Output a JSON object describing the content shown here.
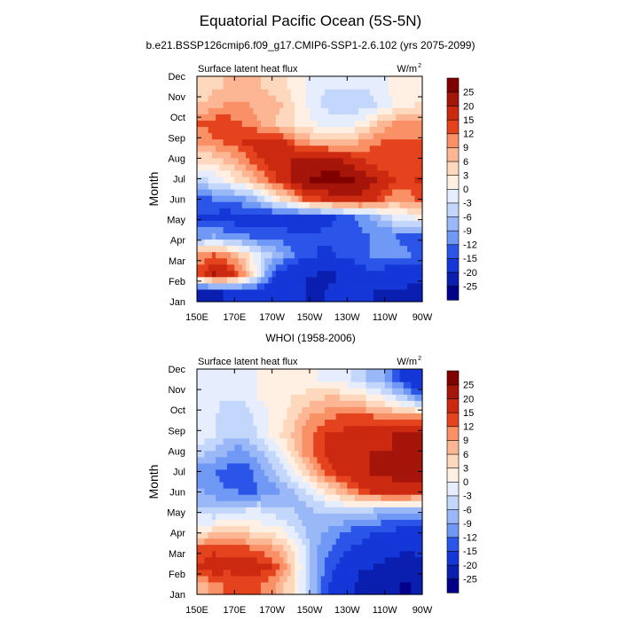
{
  "title": "Equatorial Pacific Ocean (5S-5N)",
  "colors": {
    "palette": [
      "#00008b",
      "#0a1fb0",
      "#1537d8",
      "#2a55e8",
      "#4a78ef",
      "#6f99f4",
      "#9ab8f7",
      "#c3d6fb",
      "#e6eefd",
      "#fff0e3",
      "#fdd8bd",
      "#fcb694",
      "#f99066",
      "#f0683c",
      "#e4431e",
      "#cc2a10",
      "#a5150a",
      "#800000"
    ]
  },
  "chart_data": [
    {
      "type": "heatmap",
      "title": "b.e21.BSSP126cmip6.f09_g17.CMIP6-SSP1-2.6.102 (yrs 2075-2099)",
      "left_string": "Surface latent heat flux",
      "right_string": "W/m",
      "right_string_sup": "2",
      "ylabel": "Month",
      "xlabel": "",
      "x_ticks": [
        "150E",
        "170E",
        "170W",
        "150W",
        "130W",
        "110W",
        "90W"
      ],
      "y_ticks": [
        "Jan",
        "Feb",
        "Mar",
        "Apr",
        "May",
        "Jun",
        "Jul",
        "Aug",
        "Sep",
        "Oct",
        "Nov",
        "Dec"
      ],
      "xlim": [
        150,
        270
      ],
      "colorbar_levels": [
        "25",
        "20",
        "15",
        "12",
        "9",
        "6",
        "3",
        "0",
        "-3",
        "-6",
        "-9",
        "-12",
        "-15",
        "-20",
        "-25"
      ],
      "grid": [
        [
          -22,
          -21,
          -20,
          -19,
          -18,
          -18,
          -18,
          -19,
          -20,
          -20,
          -21,
          -20,
          -19,
          -18,
          -19,
          -20,
          -21,
          -21,
          -21,
          -21
        ],
        [
          14,
          20,
          19,
          14,
          7,
          -3,
          -12,
          -17,
          -18,
          -20,
          -20,
          -21,
          -20,
          -18,
          -17,
          -16,
          -17,
          -18,
          -18,
          -19
        ],
        [
          10,
          12,
          10,
          7,
          3,
          -2,
          -6,
          -9,
          -12,
          -14,
          -15,
          -16,
          -15,
          -15,
          -13,
          -12,
          -11,
          -11,
          -11,
          -13
        ],
        [
          -10,
          -9,
          -10,
          -11,
          -12,
          -13,
          -13,
          -13,
          -14,
          -14,
          -15,
          -14,
          -14,
          -13,
          -13,
          -12,
          -12,
          -12,
          -13,
          -13
        ],
        [
          -16,
          -16,
          -17,
          -17,
          -17,
          -18,
          -18,
          -18,
          -19,
          -18,
          -17,
          -16,
          -15,
          -13,
          -11,
          -9,
          -5,
          -3,
          -1,
          0
        ],
        [
          -13,
          -12,
          -12,
          -10,
          -9,
          -5,
          -1,
          3,
          7,
          12,
          14,
          16,
          18,
          19,
          19,
          17,
          12,
          10,
          10,
          12
        ],
        [
          -4,
          -2,
          0,
          3,
          5,
          9,
          13,
          16,
          20,
          24,
          26,
          27,
          27,
          26,
          24,
          21,
          18,
          15,
          14,
          15
        ],
        [
          3,
          4,
          6,
          8,
          11,
          14,
          16,
          18,
          20,
          21,
          22,
          22,
          21,
          19,
          16,
          14,
          12,
          12,
          12,
          14
        ],
        [
          9,
          11,
          12,
          14,
          16,
          17,
          17,
          16,
          13,
          10,
          8,
          7,
          6,
          7,
          9,
          11,
          12,
          12,
          12,
          13
        ],
        [
          12,
          14,
          14,
          13,
          11,
          9,
          7,
          5,
          3,
          1,
          0,
          -1,
          -1,
          -1,
          1,
          4,
          7,
          9,
          9,
          9
        ],
        [
          6,
          8,
          9,
          9,
          9,
          8,
          7,
          6,
          3,
          1,
          -2,
          -4,
          -6,
          -6,
          -5,
          -4,
          -2,
          0,
          2,
          3
        ],
        [
          4,
          5,
          6,
          6,
          6,
          6,
          5,
          4,
          2,
          0,
          -2,
          -3,
          -3,
          -3,
          -3,
          -2,
          -1,
          1,
          1,
          2
        ]
      ]
    },
    {
      "type": "heatmap",
      "title": "WHOI (1958-2006)",
      "left_string": "Surface latent heat flux",
      "right_string": "W/m",
      "right_string_sup": "2",
      "ylabel": "Month",
      "xlabel": "",
      "x_ticks": [
        "150E",
        "170E",
        "170W",
        "150W",
        "130W",
        "110W",
        "90W"
      ],
      "y_ticks": [
        "Jan",
        "Feb",
        "Mar",
        "Apr",
        "May",
        "Jun",
        "Jul",
        "Aug",
        "Sep",
        "Oct",
        "Nov",
        "Dec"
      ],
      "xlim": [
        150,
        270
      ],
      "colorbar_levels": [
        "25",
        "20",
        "15",
        "12",
        "9",
        "6",
        "3",
        "0",
        "-3",
        "-6",
        "-9",
        "-12",
        "-15",
        "-20",
        "-25"
      ],
      "grid": [
        [
          7,
          11,
          12,
          12,
          13,
          12,
          10,
          7,
          3,
          -3,
          -9,
          -14,
          -17,
          -19,
          -21,
          -23,
          -24,
          -23,
          -26,
          -23
        ],
        [
          16,
          18,
          16,
          17,
          18,
          17,
          15,
          11,
          5,
          -2,
          -9,
          -13,
          -16,
          -18,
          -20,
          -20,
          -21,
          -21,
          -23,
          -22
        ],
        [
          12,
          14,
          13,
          13,
          12,
          11,
          9,
          7,
          2,
          -3,
          -8,
          -11,
          -13,
          -15,
          -16,
          -17,
          -18,
          -19,
          -19,
          -19
        ],
        [
          2,
          3,
          3,
          3,
          3,
          2,
          1,
          0,
          -3,
          -6,
          -8,
          -9,
          -11,
          -12,
          -13,
          -14,
          -15,
          -15,
          -16,
          -16
        ],
        [
          -5,
          -6,
          -5,
          -4,
          -3,
          -3,
          -4,
          -5,
          -6,
          -7,
          -6,
          -5,
          -4,
          -4,
          -5,
          -6,
          -7,
          -8,
          -8,
          -8
        ],
        [
          -9,
          -10,
          -12,
          -12,
          -13,
          -12,
          -11,
          -9,
          -7,
          -4,
          -1,
          3,
          6,
          10,
          13,
          15,
          17,
          18,
          18,
          17
        ],
        [
          -11,
          -12,
          -13,
          -14,
          -13,
          -11,
          -8,
          -4,
          -1,
          3,
          8,
          12,
          15,
          17,
          19,
          20,
          21,
          21,
          22,
          22
        ],
        [
          -6,
          -7,
          -9,
          -11,
          -10,
          -7,
          -4,
          -1,
          4,
          9,
          13,
          16,
          18,
          19,
          19,
          20,
          20,
          20,
          21,
          21
        ],
        [
          -1,
          -3,
          -5,
          -6,
          -5,
          -3,
          0,
          3,
          6,
          10,
          13,
          15,
          16,
          17,
          18,
          19,
          19,
          20,
          21,
          24
        ],
        [
          -2,
          -3,
          -4,
          -5,
          -4,
          -2,
          0,
          2,
          4,
          8,
          10,
          11,
          12,
          12,
          12,
          12,
          11,
          10,
          9,
          9
        ],
        [
          -1,
          -2,
          -3,
          -3,
          -2,
          0,
          1,
          2,
          3,
          4,
          5,
          6,
          6,
          5,
          4,
          2,
          0,
          -3,
          -6,
          -10
        ],
        [
          -2,
          -2,
          -2,
          -1,
          -1,
          0,
          1,
          2,
          2,
          1,
          0,
          -1,
          -2,
          -3,
          -5,
          -7,
          -9,
          -13,
          -16,
          -20
        ]
      ]
    }
  ]
}
